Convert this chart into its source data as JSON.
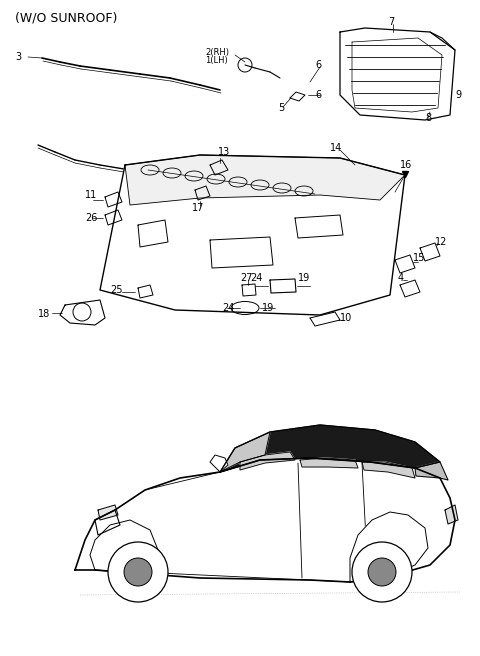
{
  "title": "(W/O SUNROOF)",
  "bg_color": "#ffffff",
  "lc": "#000000",
  "fs": 7,
  "fig_width": 4.8,
  "fig_height": 6.56,
  "dpi": 100
}
